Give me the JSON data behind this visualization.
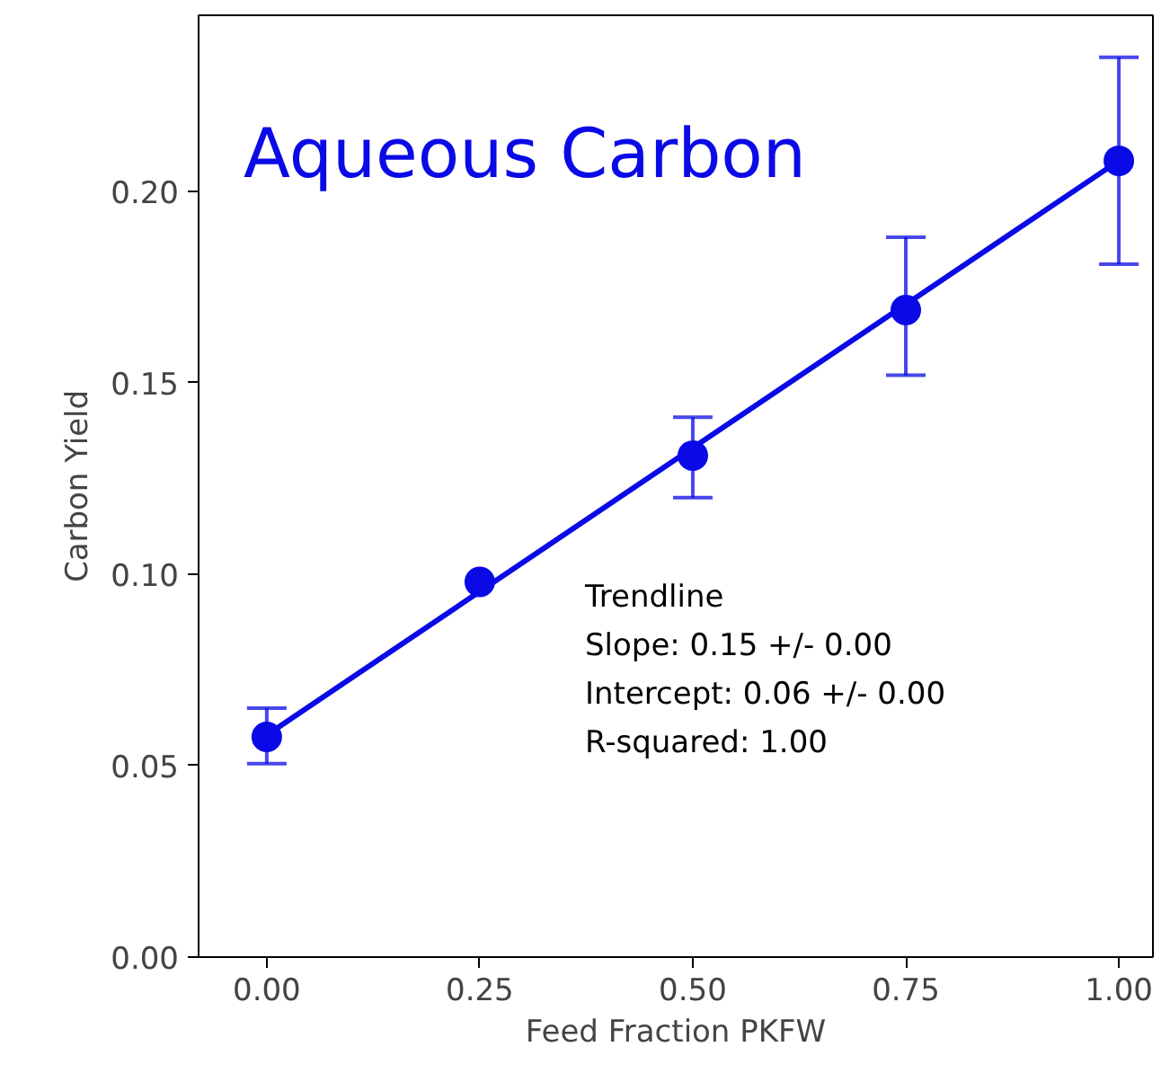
{
  "chart_data": {
    "type": "scatter",
    "title": "Aqueous Carbon",
    "xlabel": "Feed Fraction PKFW",
    "ylabel": "Carbon Yield",
    "x": [
      0,
      0.25,
      0.5,
      0.75,
      1.0
    ],
    "series": [
      {
        "color": "#0a0ae6",
        "marker": "circle",
        "values": [
          0.0575,
          0.098,
          0.131,
          0.169,
          0.208
        ],
        "errors": [
          [
            0.0505,
            0.065
          ],
          null,
          [
            0.12,
            0.141
          ],
          [
            0.152,
            0.188
          ],
          [
            0.181,
            0.235
          ]
        ]
      },
      {
        "type": "line",
        "marker": "none",
        "color": "#0a0ae6",
        "x": [
          0,
          1
        ],
        "values": [
          0.058,
          0.208
        ]
      }
    ],
    "annotations": [
      "Trendline",
      "Slope: 0.15 +/- 0.00",
      "Intercept: 0.06 +/- 0.00",
      "R-squared: 1.00"
    ],
    "xlim": [
      -0.08,
      1.04
    ],
    "ylim": [
      0,
      0.246
    ],
    "xticks": [
      {
        "value": 0,
        "label": "0.00"
      },
      {
        "value": 0.25,
        "label": "0.25"
      },
      {
        "value": 0.5,
        "label": "0.50"
      },
      {
        "value": 0.75,
        "label": "0.75"
      },
      {
        "value": 1.0,
        "label": "1.00"
      }
    ],
    "yticks": [
      {
        "value": 0,
        "label": "0.00"
      },
      {
        "value": 0.05,
        "label": "0.05"
      },
      {
        "value": 0.1,
        "label": "0.10"
      },
      {
        "value": 0.15,
        "label": "0.15"
      },
      {
        "value": 0.2,
        "label": "0.20"
      }
    ],
    "grid": false
  }
}
